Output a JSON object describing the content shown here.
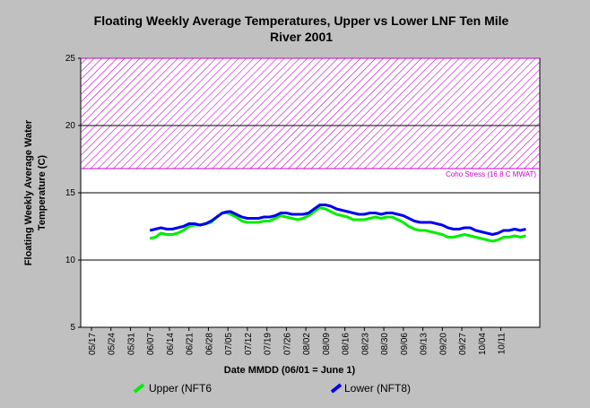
{
  "chart_data": {
    "type": "line",
    "title_line1": "Floating Weekly Average Temperatures, Upper vs Lower LNF Ten Mile",
    "title_line2": "River 2001",
    "xlabel": "Date MMDD (06/01 = June 1)",
    "ylabel_line1": "Floating Weekly Average Water",
    "ylabel_line2": "Temperature (C)",
    "ylim": [
      5,
      25
    ],
    "yticks": [
      5,
      10,
      15,
      20,
      25
    ],
    "xticks": [
      "05/17",
      "05/24",
      "05/31",
      "06/07",
      "06/14",
      "06/21",
      "06/28",
      "07/05",
      "07/12",
      "07/19",
      "07/26",
      "08/02",
      "08/09",
      "08/16",
      "08/23",
      "08/30",
      "09/06",
      "09/13",
      "09/20",
      "09/27",
      "10/04",
      "10/11"
    ],
    "x_start_day": 0,
    "x_end_day": 161,
    "grid": "horizontal at 10, 15, 20",
    "threshold": {
      "lower": 16.8,
      "upper": 25,
      "label": "Coho Stress (16.8 C MWAT)",
      "color": "#cc00cc"
    },
    "series": [
      {
        "name": "Upper (NFT6",
        "color": "#00ee00",
        "x_day": [
          21,
          23,
          25,
          27,
          29,
          31,
          33,
          35,
          37,
          39,
          41,
          43,
          45,
          47,
          49,
          50,
          52,
          54,
          56,
          58,
          60,
          62,
          64,
          66,
          68,
          70,
          72,
          74,
          76,
          78,
          80,
          82,
          84,
          86,
          88,
          90,
          92,
          94,
          96,
          98,
          100,
          102,
          104,
          106,
          108,
          110,
          112,
          114,
          116,
          118,
          120,
          122,
          124,
          126,
          128,
          130,
          132,
          134,
          136,
          138,
          140,
          142,
          144,
          146,
          148,
          150,
          152,
          154,
          156
        ],
        "values": [
          11.6,
          11.7,
          12.0,
          11.9,
          11.9,
          12.0,
          12.2,
          12.5,
          12.6,
          12.6,
          12.7,
          12.8,
          13.2,
          13.5,
          13.5,
          13.4,
          13.2,
          12.9,
          12.8,
          12.8,
          12.8,
          12.9,
          12.9,
          13.1,
          13.3,
          13.2,
          13.1,
          13.0,
          13.1,
          13.3,
          13.6,
          13.9,
          13.8,
          13.6,
          13.4,
          13.3,
          13.2,
          13.0,
          13.0,
          13.0,
          13.1,
          13.2,
          13.1,
          13.2,
          13.2,
          13.0,
          12.8,
          12.5,
          12.3,
          12.2,
          12.2,
          12.1,
          12.0,
          11.9,
          11.7,
          11.7,
          11.8,
          11.9,
          11.8,
          11.7,
          11.6,
          11.5,
          11.4,
          11.5,
          11.7,
          11.7,
          11.8,
          11.7,
          11.8
        ]
      },
      {
        "name": "Lower (NFT8)",
        "color": "#0000ee",
        "x_day": [
          21,
          23,
          25,
          27,
          29,
          31,
          33,
          35,
          37,
          39,
          41,
          43,
          45,
          47,
          49,
          50,
          52,
          54,
          56,
          58,
          60,
          62,
          64,
          66,
          68,
          70,
          72,
          74,
          76,
          78,
          80,
          82,
          84,
          86,
          88,
          90,
          92,
          94,
          96,
          98,
          100,
          102,
          104,
          106,
          108,
          110,
          112,
          114,
          116,
          118,
          120,
          122,
          124,
          126,
          128,
          130,
          132,
          134,
          136,
          138,
          140,
          142,
          144,
          146,
          148,
          150,
          152,
          154,
          156
        ],
        "values": [
          12.2,
          12.3,
          12.4,
          12.3,
          12.3,
          12.4,
          12.5,
          12.7,
          12.7,
          12.6,
          12.7,
          12.9,
          13.2,
          13.5,
          13.6,
          13.6,
          13.4,
          13.2,
          13.1,
          13.1,
          13.1,
          13.2,
          13.2,
          13.3,
          13.5,
          13.5,
          13.4,
          13.4,
          13.4,
          13.5,
          13.8,
          14.1,
          14.1,
          14.0,
          13.8,
          13.7,
          13.6,
          13.5,
          13.4,
          13.4,
          13.5,
          13.5,
          13.4,
          13.5,
          13.5,
          13.4,
          13.3,
          13.1,
          12.9,
          12.8,
          12.8,
          12.8,
          12.7,
          12.6,
          12.4,
          12.3,
          12.3,
          12.4,
          12.4,
          12.2,
          12.1,
          12.0,
          11.9,
          12.0,
          12.2,
          12.2,
          12.3,
          12.2,
          12.3
        ]
      }
    ]
  }
}
